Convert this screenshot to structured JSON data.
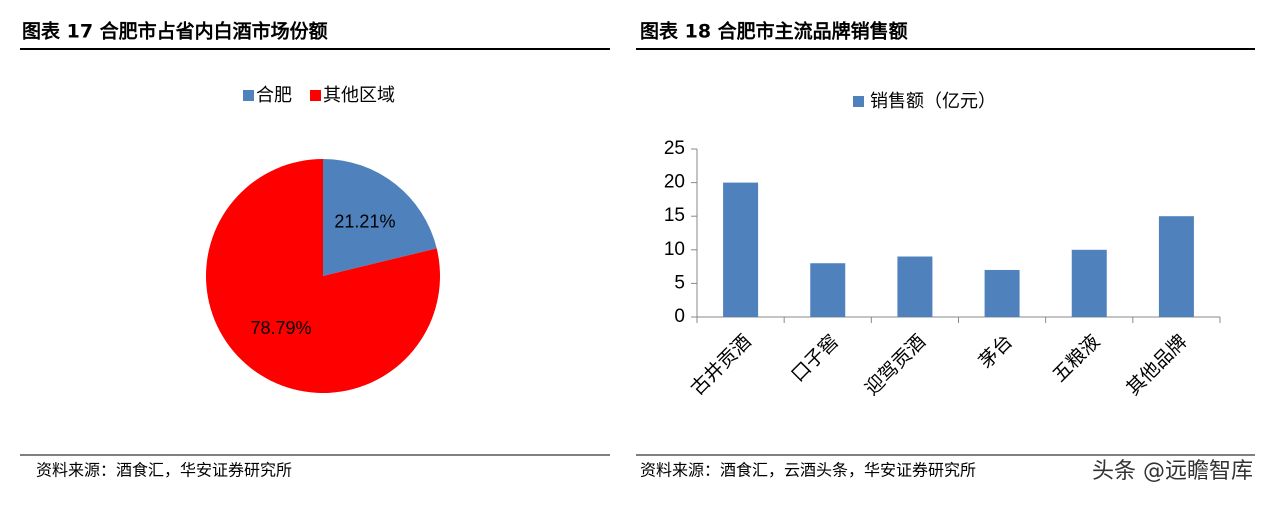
{
  "chart_data": [
    {
      "type": "pie",
      "title": "图表 17 合肥市占省内白酒市场份额",
      "categories": [
        "合肥",
        "其他区域"
      ],
      "values": [
        21.21,
        78.79
      ],
      "value_labels": [
        "21.21%",
        "78.79%"
      ],
      "colors": [
        "#4f81bd",
        "#ff0000"
      ],
      "source": "资料来源：酒食汇，华安证券研究所"
    },
    {
      "type": "bar",
      "title": "图表 18 合肥市主流品牌销售额",
      "categories": [
        "古井贡酒",
        "口子窖",
        "迎驾贡酒",
        "茅台",
        "五粮液",
        "其他品牌"
      ],
      "series": [
        {
          "name": "销售额（亿元）",
          "color": "#4f81bd",
          "values": [
            20,
            8,
            9,
            7,
            10,
            15
          ]
        }
      ],
      "ylim": [
        0,
        25
      ],
      "yticks": [
        0,
        5,
        10,
        15,
        20,
        25
      ],
      "source": "资料来源：酒食汇，云酒头条，华安证券研究所"
    }
  ],
  "watermark": "头条 @远瞻智库"
}
